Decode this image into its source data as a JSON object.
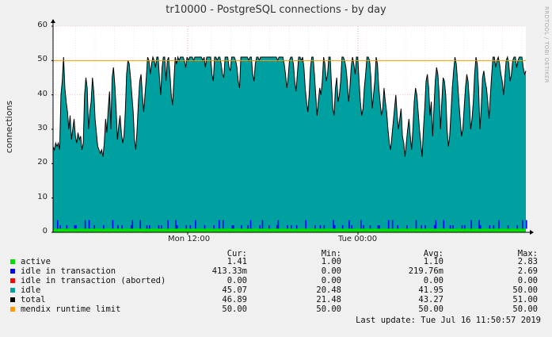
{
  "chart_data": {
    "type": "area",
    "title": "tr10000 - PostgreSQL connections - by day",
    "ylabel": "connections",
    "side_label": "RRDTOOL / TOBI OETIKER",
    "ylim": [
      0,
      60
    ],
    "yticks": [
      0,
      10,
      20,
      30,
      40,
      50,
      60
    ],
    "xticks": [
      "Mon 12:00",
      "Tue 00:00"
    ],
    "limit_value": 50,
    "legend_headers": [
      "Cur:",
      "Min:",
      "Avg:",
      "Max:"
    ],
    "series": [
      {
        "name": "active",
        "color": "#00e000",
        "cur": "1.41",
        "min": "1.00",
        "avg": "1.10",
        "max": "2.83"
      },
      {
        "name": "idle in transaction",
        "color": "#0000ff",
        "cur": "413.33m",
        "min": "0.00",
        "avg": "219.76m",
        "max": "2.69"
      },
      {
        "name": "idle in transaction (aborted)",
        "color": "#ff0000",
        "cur": "0.00",
        "min": "0.00",
        "avg": "0.00",
        "max": "0.00"
      },
      {
        "name": "idle",
        "color": "#00a0a0",
        "cur": "45.07",
        "min": "20.48",
        "avg": "41.95",
        "max": "50.00"
      },
      {
        "name": "total",
        "color": "#000000",
        "cur": "46.89",
        "min": "21.48",
        "avg": "43.27",
        "max": "51.00"
      },
      {
        "name": "mendix runtime limit",
        "color": "#ff9900",
        "cur": "50.00",
        "min": "50.00",
        "avg": "50.00",
        "max": "50.00"
      }
    ],
    "total_profile": [
      25,
      24,
      26,
      25,
      26,
      24,
      40,
      44,
      51,
      42,
      38,
      35,
      30,
      34,
      27,
      30,
      33,
      28,
      26,
      29,
      27,
      28,
      24,
      26,
      40,
      45,
      42,
      30,
      35,
      38,
      45,
      41,
      33,
      29,
      25,
      24,
      23,
      24,
      22,
      26,
      33,
      29,
      36,
      41,
      30,
      45,
      48,
      43,
      36,
      27,
      31,
      34,
      29,
      26,
      28,
      35,
      46,
      50,
      49,
      45,
      40,
      35,
      27,
      24,
      30,
      38,
      44,
      46,
      40,
      35,
      40,
      45,
      51,
      50,
      46,
      49,
      51,
      50,
      48,
      51,
      51,
      45,
      40,
      48,
      51,
      51,
      44,
      50,
      51,
      46,
      40,
      37,
      44,
      51,
      49,
      51,
      50,
      51,
      51,
      51,
      50,
      48,
      51,
      50,
      51,
      51,
      51,
      50,
      51,
      51,
      51,
      51,
      51,
      51,
      50,
      51,
      48,
      51,
      51,
      51,
      51,
      46,
      44,
      51,
      51,
      50,
      51,
      51,
      49,
      46,
      45,
      51,
      51,
      51,
      48,
      47,
      51,
      51,
      51,
      50,
      48,
      44,
      42,
      51,
      51,
      51,
      51,
      51,
      51,
      50,
      51,
      51,
      46,
      44,
      49,
      51,
      51,
      50,
      51,
      51,
      51,
      51,
      51,
      51,
      51,
      51,
      51,
      51,
      51,
      51,
      51,
      50,
      51,
      51,
      51,
      51,
      49,
      46,
      42,
      45,
      50,
      51,
      51,
      49,
      44,
      41,
      46,
      51,
      51,
      50,
      51,
      48,
      42,
      38,
      35,
      40,
      48,
      51,
      51,
      46,
      40,
      34,
      38,
      42,
      40,
      44,
      51,
      49,
      44,
      46,
      51,
      51,
      43,
      36,
      34,
      42,
      45,
      38,
      40,
      44,
      51,
      51,
      50,
      48,
      44,
      38,
      42,
      48,
      51,
      49,
      46,
      51,
      51,
      44,
      38,
      34,
      36,
      42,
      46,
      51,
      51,
      50,
      45,
      36,
      40,
      44,
      51,
      49,
      42,
      38,
      34,
      36,
      42,
      38,
      35,
      30,
      26,
      24,
      28,
      32,
      36,
      40,
      34,
      30,
      33,
      36,
      28,
      26,
      22,
      26,
      30,
      33,
      28,
      24,
      30,
      38,
      42,
      40,
      35,
      30,
      26,
      22,
      30,
      36,
      44,
      46,
      42,
      34,
      38,
      28,
      36,
      44,
      48,
      46,
      40,
      30,
      38,
      45,
      44,
      40,
      30,
      25,
      28,
      35,
      42,
      47,
      51,
      49,
      44,
      38,
      33,
      28,
      30,
      36,
      42,
      46,
      44,
      38,
      30,
      33,
      38,
      46,
      51,
      49,
      42,
      30,
      36,
      45,
      47,
      44,
      42,
      38,
      33,
      40,
      46,
      51,
      51,
      48,
      50,
      51,
      49,
      46,
      44,
      40,
      45,
      50,
      51,
      49,
      44,
      46,
      50,
      51,
      51,
      48,
      50,
      51,
      51,
      51,
      48,
      46,
      47
    ]
  }
}
